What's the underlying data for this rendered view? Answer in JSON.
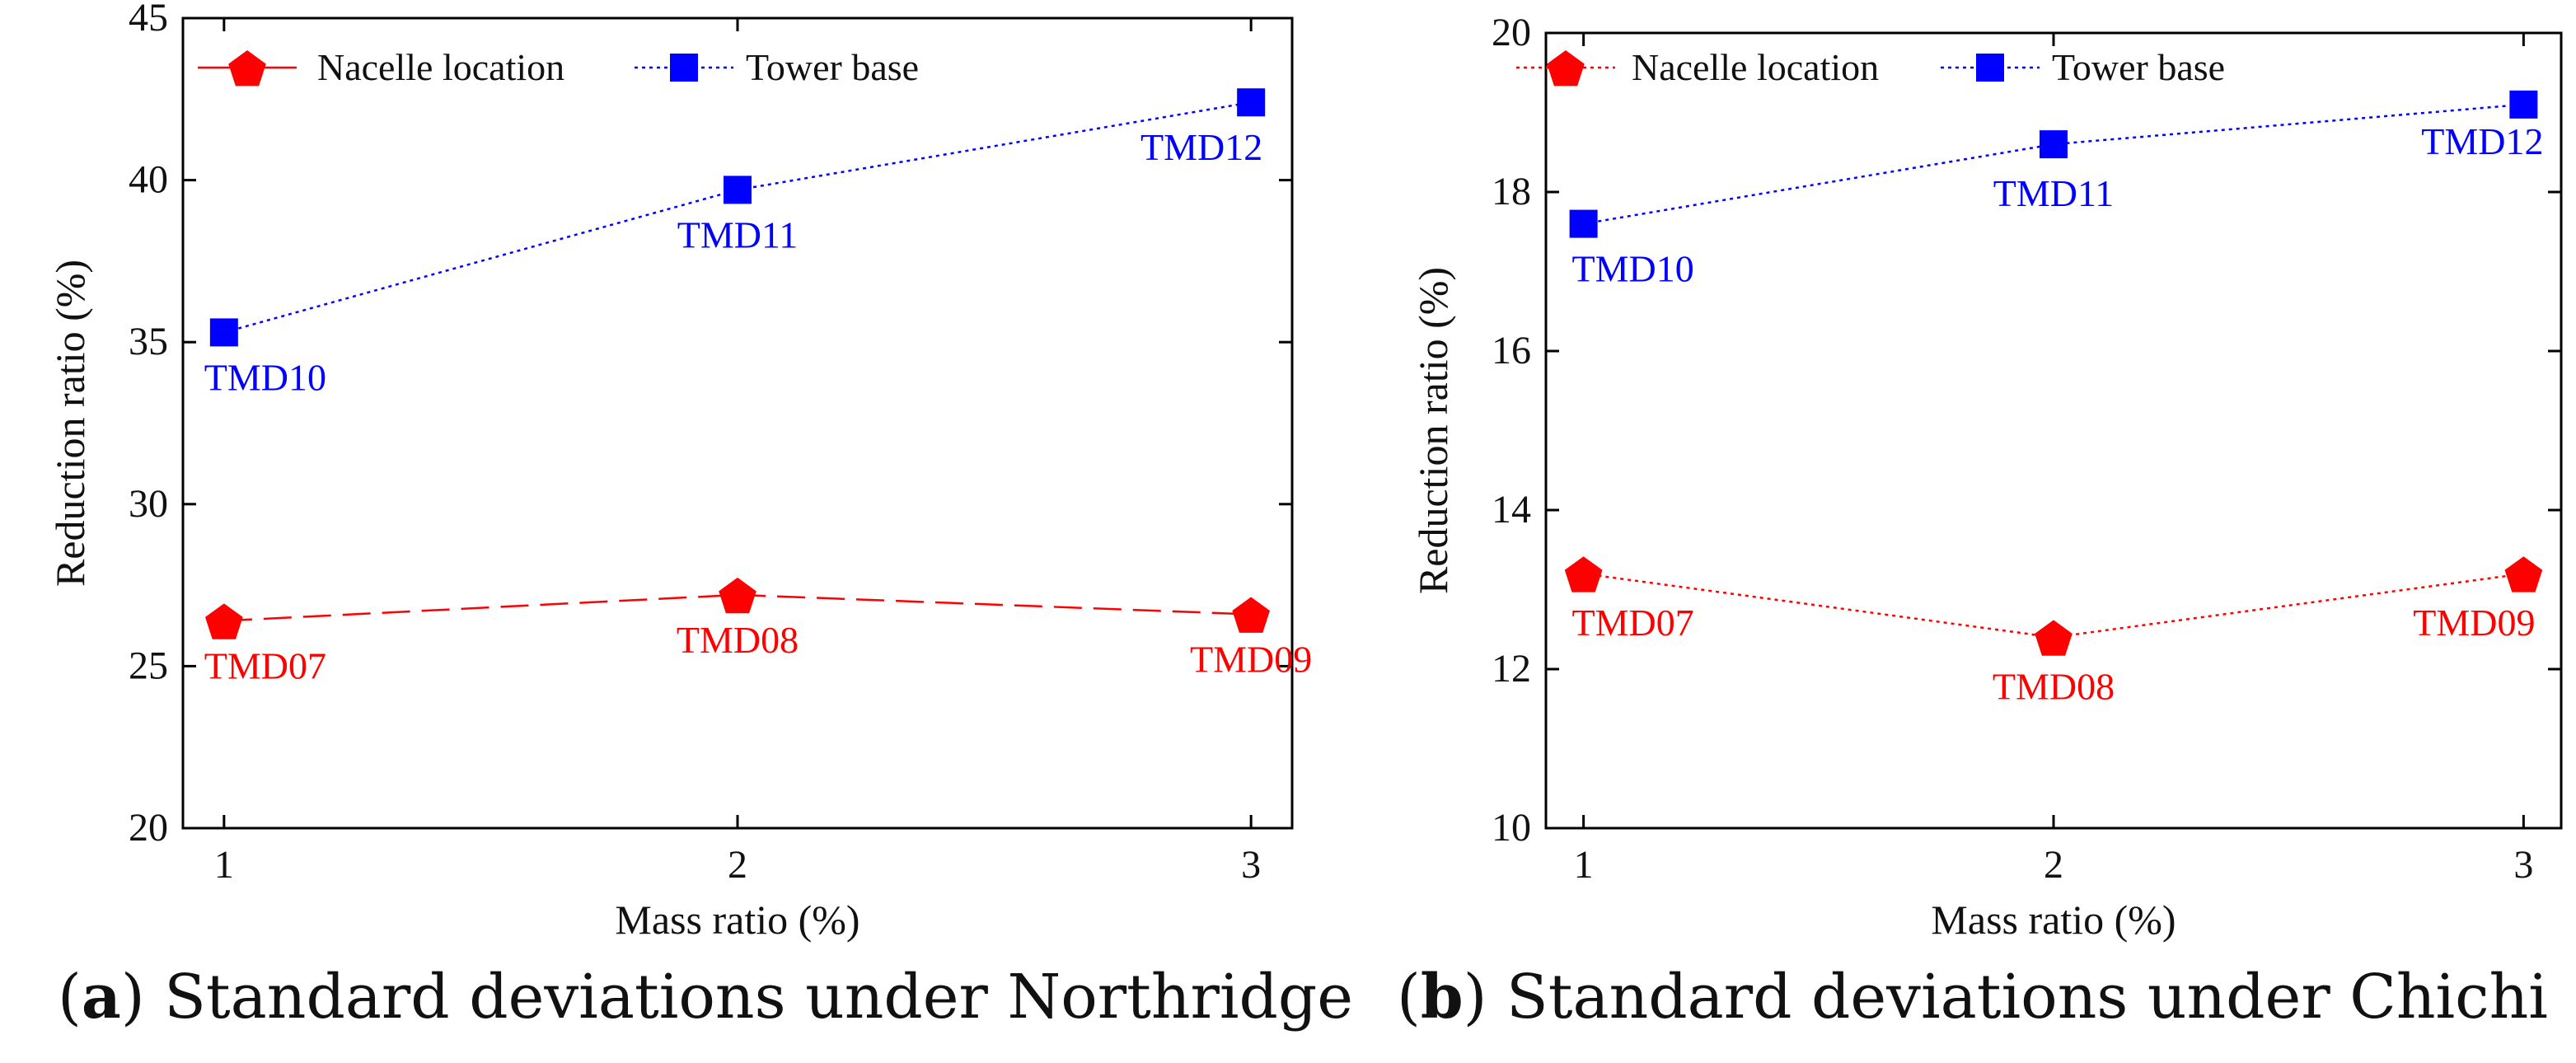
{
  "colors": {
    "nacelle": "#ff0000",
    "tower": "#0000ff",
    "axis": "#000000"
  },
  "chart_data": [
    {
      "type": "line",
      "x": [
        1,
        2,
        3
      ],
      "xticks": [
        "1",
        "2",
        "3"
      ],
      "yticks": [
        "20",
        "25",
        "30",
        "35",
        "40",
        "45"
      ],
      "xlabel": "Mass ratio (%)",
      "ylabel": "Reduction ratio (%)",
      "xlim": [
        0.92,
        3.08
      ],
      "ylim": [
        20,
        45
      ],
      "legend_position": "top",
      "grid": false,
      "series": [
        {
          "name": "Nacelle location",
          "key": "nacelle",
          "marker": "pentagon",
          "line": "dashed",
          "values": [
            26.4,
            27.2,
            26.6
          ],
          "labels": [
            "TMD07",
            "TMD08",
            "TMD09"
          ]
        },
        {
          "name": "Tower base",
          "key": "tower",
          "marker": "square",
          "line": "dotted",
          "values": [
            35.3,
            39.7,
            42.4
          ],
          "labels": [
            "TMD10",
            "TMD11",
            "TMD12"
          ]
        }
      ],
      "caption": {
        "letter": "a",
        "text": "Standard deviations under Northridge"
      }
    },
    {
      "type": "line",
      "x": [
        1,
        2,
        3
      ],
      "xticks": [
        "1",
        "2",
        "3"
      ],
      "yticks": [
        "10",
        "12",
        "14",
        "16",
        "18",
        "20"
      ],
      "xlabel": "Mass ratio (%)",
      "ylabel": "Reduction ratio (%)",
      "xlim": [
        0.92,
        3.08
      ],
      "ylim": [
        10,
        20
      ],
      "legend_position": "top",
      "grid": false,
      "series": [
        {
          "name": "Nacelle location",
          "key": "nacelle",
          "marker": "pentagon",
          "line": "dotted",
          "values": [
            13.2,
            12.4,
            13.2
          ],
          "labels": [
            "TMD07",
            "TMD08",
            "TMD09"
          ]
        },
        {
          "name": "Tower base",
          "key": "tower",
          "marker": "square",
          "line": "dotted",
          "values": [
            17.6,
            18.6,
            19.1
          ],
          "labels": [
            "TMD10",
            "TMD11",
            "TMD12"
          ]
        }
      ],
      "caption": {
        "letter": "b",
        "text": "Standard deviations under Chichi"
      }
    }
  ]
}
